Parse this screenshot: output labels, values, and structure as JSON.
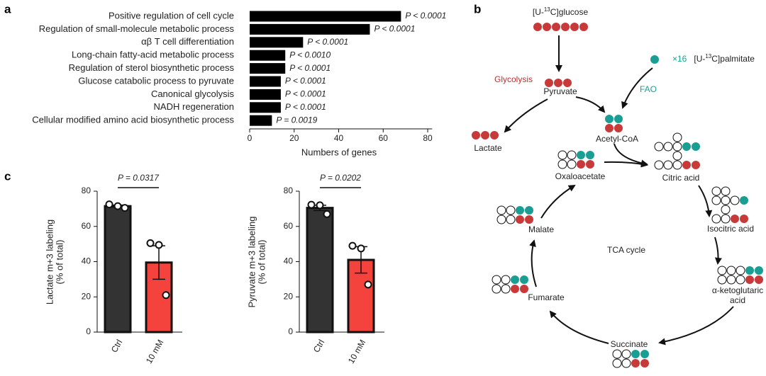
{
  "panels": [
    "a",
    "b",
    "c"
  ],
  "chart_data": [
    {
      "type": "barh",
      "categories": [
        "Positive regulation of cell cycle",
        "Regulation of small-molecule metabolic process",
        "αβ T cell differentiation",
        "Long-chain fatty-acid metabolic process",
        "Regulation of sterol biosynthetic process",
        "Glucose catabolic process to pyruvate",
        "Canonical glycolysis",
        "NADH regeneration",
        "Cellular modified amino acid biosynthetic process"
      ],
      "values": [
        68,
        54,
        24,
        16,
        16,
        14,
        14,
        14,
        10
      ],
      "annotations": [
        "P < 0.0001",
        "P < 0.0001",
        "P < 0.0001",
        "P < 0.0010",
        "P < 0.0001",
        "P < 0.0001",
        "P < 0.0001",
        "P < 0.0001",
        "P = 0.0019"
      ],
      "color": "#000000",
      "xlabel": "Numbers of genes",
      "xlim": [
        0,
        82
      ],
      "xticks": [
        0,
        20,
        40,
        60,
        80
      ]
    },
    {
      "type": "bar",
      "categories": [
        "Ctrl",
        "10 mM"
      ],
      "values": [
        71.5,
        39.5
      ],
      "errors": [
        0.6,
        9.5
      ],
      "points": [
        [
          72.5,
          71.5,
          70.5
        ],
        [
          50.5,
          49.5,
          21
        ]
      ],
      "colors": [
        "#333333",
        "#f4433c"
      ],
      "ylabel": [
        "Lactate m+3 labeling",
        "(% of total)"
      ],
      "annotation": "P = 0.0317",
      "ylim": [
        0,
        80
      ],
      "yticks": [
        0,
        20,
        40,
        60,
        80
      ]
    },
    {
      "type": "bar",
      "categories": [
        "Ctrl",
        "10 mM"
      ],
      "values": [
        70.5,
        41
      ],
      "errors": [
        1.5,
        7.5
      ],
      "points": [
        [
          72.3,
          72,
          67
        ],
        [
          49,
          47.5,
          27
        ]
      ],
      "colors": [
        "#333333",
        "#f4433c"
      ],
      "ylabel": [
        "Pyruvate m+3 labeling",
        "(% of total)"
      ],
      "annotation": "P = 0.0202",
      "ylim": [
        0,
        80
      ],
      "yticks": [
        0,
        20,
        40,
        60,
        80
      ]
    }
  ],
  "diagram": {
    "glucose": [
      "[U-",
      "13",
      "C]glucose"
    ],
    "palmitate": [
      "[U-",
      "13",
      "C]palmitate"
    ],
    "multiplier": "×16",
    "glycolysis": "Glycolysis",
    "fao": "FAO",
    "pyruvate": "Pyruvate",
    "lactate": "Lactate",
    "acetyl_coa": "Acetyl-CoA",
    "oxaloacetate": "Oxaloacetate",
    "citric": "Citric acid",
    "isocitric": "Isocitric acid",
    "akg": [
      "α-ketoglutaric",
      "acid"
    ],
    "succinate": "Succinate",
    "fumarate": "Fumarate",
    "malate": "Malate",
    "cycle": "TCA cycle"
  }
}
